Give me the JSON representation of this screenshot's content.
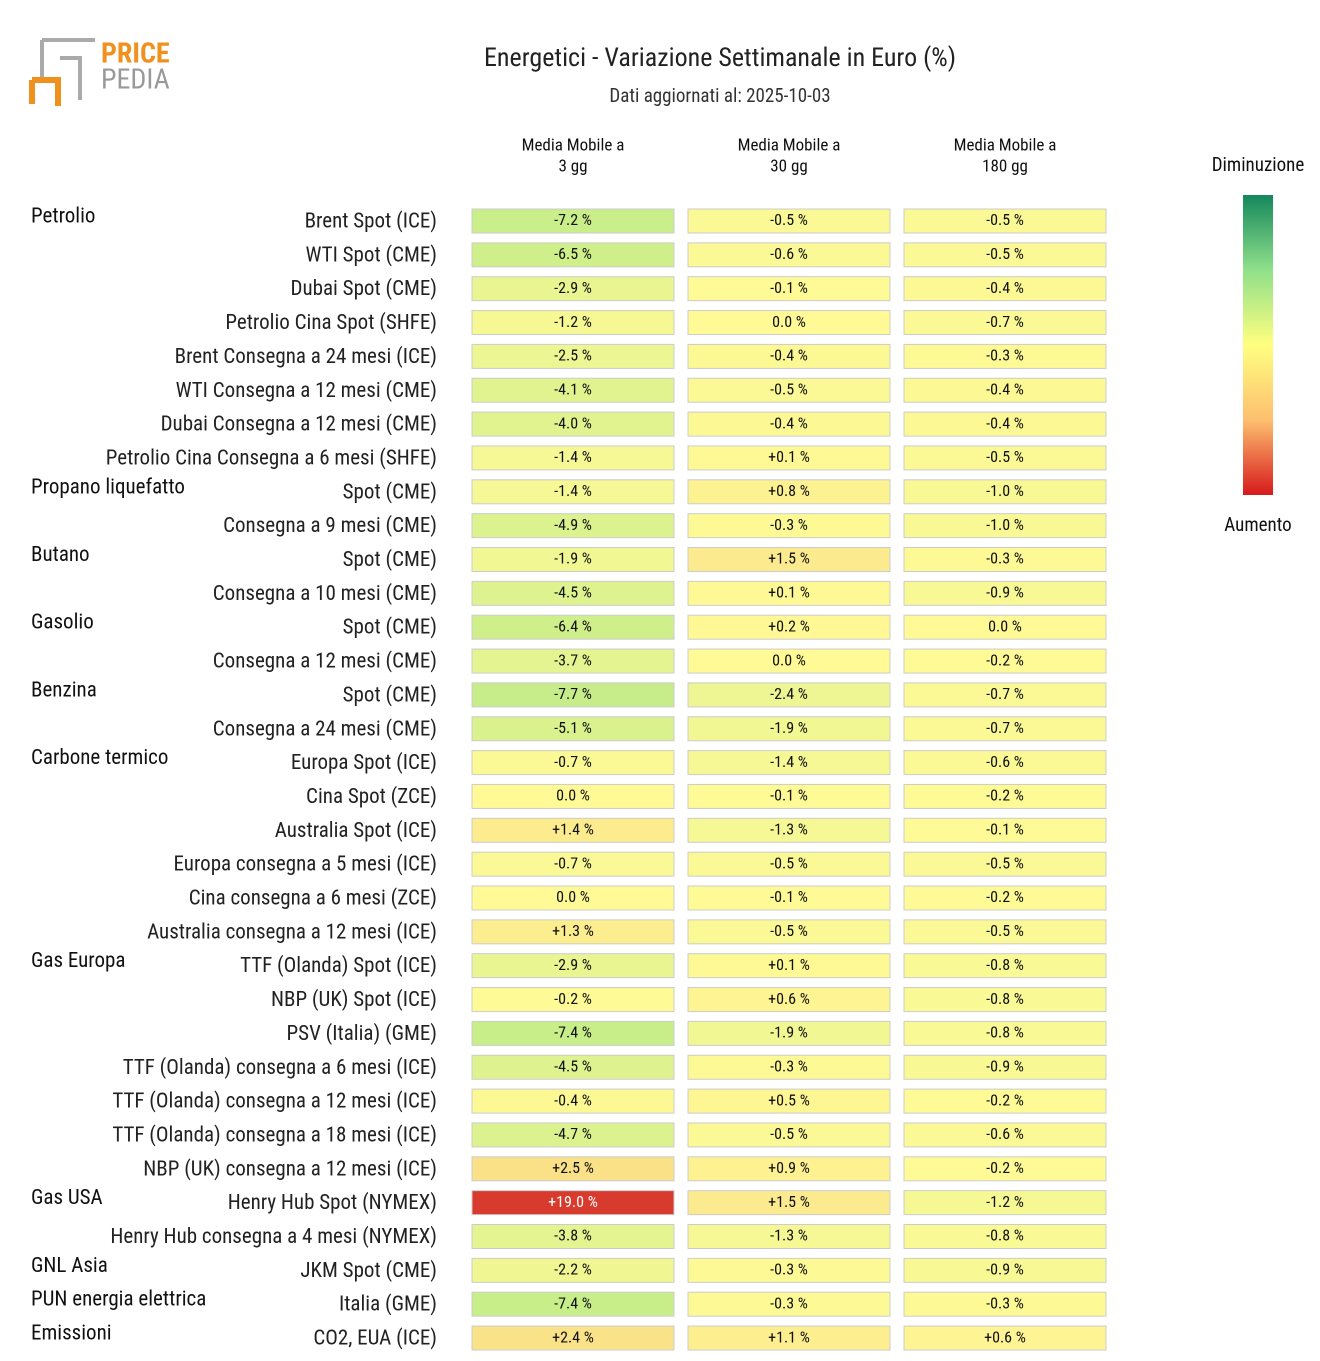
{
  "logo": {
    "top": "PRICE",
    "bottom": "PEDIA"
  },
  "header": {
    "title": "Energetici - Variazione Settimanale in Euro (%)",
    "subtitle": "Dati aggiornati al: 2025-10-03"
  },
  "columns": [
    [
      "Media Mobile a",
      "3 gg"
    ],
    [
      "Media Mobile a",
      "30 gg"
    ],
    [
      "Media Mobile a",
      "180 gg"
    ]
  ],
  "legend": {
    "top": "Diminuzione",
    "bottom": "Aumento"
  },
  "rows": [
    {
      "group": "Petrolio",
      "label": "Brent Spot (ICE)",
      "cells": [
        "-7.2 %",
        "-0.5 %",
        "-0.5 %"
      ]
    },
    {
      "group": null,
      "label": "WTI Spot (CME)",
      "cells": [
        "-6.5 %",
        "-0.6 %",
        "-0.5 %"
      ]
    },
    {
      "group": null,
      "label": "Dubai Spot (CME)",
      "cells": [
        "-2.9 %",
        "-0.1 %",
        "-0.4 %"
      ]
    },
    {
      "group": null,
      "label": "Petrolio Cina Spot (SHFE)",
      "cells": [
        "-1.2 %",
        "0.0 %",
        "-0.7 %"
      ]
    },
    {
      "group": null,
      "label": "Brent Consegna a 24 mesi (ICE)",
      "cells": [
        "-2.5 %",
        "-0.4 %",
        "-0.3 %"
      ]
    },
    {
      "group": null,
      "label": "WTI Consegna a 12 mesi (CME)",
      "cells": [
        "-4.1 %",
        "-0.5 %",
        "-0.4 %"
      ]
    },
    {
      "group": null,
      "label": "Dubai Consegna a 12 mesi (CME)",
      "cells": [
        "-4.0 %",
        "-0.4 %",
        "-0.4 %"
      ]
    },
    {
      "group": null,
      "label": "Petrolio Cina Consegna a 6 mesi (SHFE)",
      "cells": [
        "-1.4 %",
        "+0.1 %",
        "-0.5 %"
      ]
    },
    {
      "group": "Propano liquefatto",
      "label": "Spot (CME)",
      "cells": [
        "-1.4 %",
        "+0.8 %",
        "-1.0 %"
      ]
    },
    {
      "group": null,
      "label": "Consegna a 9 mesi (CME)",
      "cells": [
        "-4.9 %",
        "-0.3 %",
        "-1.0 %"
      ]
    },
    {
      "group": "Butano",
      "label": "Spot (CME)",
      "cells": [
        "-1.9 %",
        "+1.5 %",
        "-0.3 %"
      ]
    },
    {
      "group": null,
      "label": "Consegna a 10 mesi (CME)",
      "cells": [
        "-4.5 %",
        "+0.1 %",
        "-0.9 %"
      ]
    },
    {
      "group": "Gasolio",
      "label": "Spot (CME)",
      "cells": [
        "-6.4 %",
        "+0.2 %",
        "0.0 %"
      ]
    },
    {
      "group": null,
      "label": "Consegna a 12 mesi (CME)",
      "cells": [
        "-3.7 %",
        "0.0 %",
        "-0.2 %"
      ]
    },
    {
      "group": "Benzina",
      "label": "Spot (CME)",
      "cells": [
        "-7.7 %",
        "-2.4 %",
        "-0.7 %"
      ]
    },
    {
      "group": null,
      "label": "Consegna a 24 mesi (CME)",
      "cells": [
        "-5.1 %",
        "-1.9 %",
        "-0.7 %"
      ]
    },
    {
      "group": "Carbone termico",
      "label": "Europa Spot (ICE)",
      "cells": [
        "-0.7 %",
        "-1.4 %",
        "-0.6 %"
      ]
    },
    {
      "group": null,
      "label": "Cina Spot (ZCE)",
      "cells": [
        "0.0 %",
        "-0.1 %",
        "-0.2 %"
      ]
    },
    {
      "group": null,
      "label": "Australia Spot (ICE)",
      "cells": [
        "+1.4 %",
        "-1.3 %",
        "-0.1 %"
      ]
    },
    {
      "group": null,
      "label": "Europa consegna a 5 mesi (ICE)",
      "cells": [
        "-0.7 %",
        "-0.5 %",
        "-0.5 %"
      ]
    },
    {
      "group": null,
      "label": "Cina consegna a 6 mesi (ZCE)",
      "cells": [
        "0.0 %",
        "-0.1 %",
        "-0.2 %"
      ]
    },
    {
      "group": null,
      "label": "Australia consegna a 12 mesi (ICE)",
      "cells": [
        "+1.3 %",
        "-0.5 %",
        "-0.5 %"
      ]
    },
    {
      "group": "Gas Europa",
      "label": "TTF (Olanda) Spot (ICE)",
      "cells": [
        "-2.9 %",
        "+0.1 %",
        "-0.8 %"
      ]
    },
    {
      "group": null,
      "label": "NBP (UK) Spot (ICE)",
      "cells": [
        "-0.2 %",
        "+0.6 %",
        "-0.8 %"
      ]
    },
    {
      "group": null,
      "label": "PSV (Italia) (GME)",
      "cells": [
        "-7.4 %",
        "-1.9 %",
        "-0.8 %"
      ]
    },
    {
      "group": null,
      "label": "TTF (Olanda) consegna a 6 mesi (ICE)",
      "cells": [
        "-4.5 %",
        "-0.3 %",
        "-0.9 %"
      ]
    },
    {
      "group": null,
      "label": "TTF (Olanda) consegna a 12 mesi (ICE)",
      "cells": [
        "-0.4 %",
        "+0.5 %",
        "-0.2 %"
      ]
    },
    {
      "group": null,
      "label": "TTF (Olanda) consegna a 18 mesi (ICE)",
      "cells": [
        "-4.7 %",
        "-0.5 %",
        "-0.6 %"
      ]
    },
    {
      "group": null,
      "label": "NBP (UK) consegna a 12 mesi (ICE)",
      "cells": [
        "+2.5 %",
        "+0.9 %",
        "-0.2 %"
      ]
    },
    {
      "group": "Gas USA",
      "label": "Henry Hub Spot (NYMEX)",
      "cells": [
        "+19.0 %",
        "+1.5 %",
        "-1.2 %"
      ]
    },
    {
      "group": null,
      "label": "Henry Hub consegna a 4 mesi (NYMEX)",
      "cells": [
        "-3.8 %",
        "-1.3 %",
        "-0.8 %"
      ]
    },
    {
      "group": "GNL Asia",
      "label": "JKM Spot (CME)",
      "cells": [
        "-2.2 %",
        "-0.3 %",
        "-0.9 %"
      ]
    },
    {
      "group": "PUN energia elettrica",
      "label": "Italia (GME)",
      "cells": [
        "-7.4 %",
        "-0.3 %",
        "-0.3 %"
      ]
    },
    {
      "group": "Emissioni",
      "label": "CO2, EUA (ICE)",
      "cells": [
        "+2.4 %",
        "+1.1 %",
        "+0.6 %"
      ]
    }
  ]
}
